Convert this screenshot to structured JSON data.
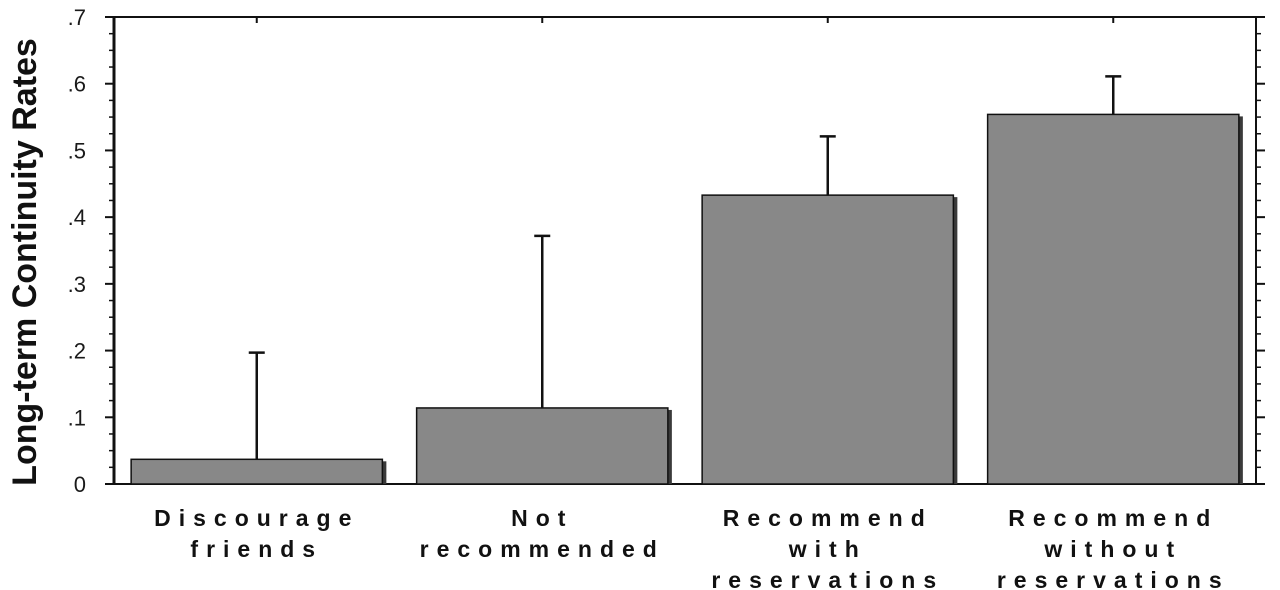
{
  "chart_data": {
    "type": "bar",
    "title": "",
    "xlabel": "",
    "ylabel": "Long-term Continuity Rates",
    "categories": [
      [
        "Discourage",
        "friends"
      ],
      [
        "Not",
        "recommended"
      ],
      [
        "Recommend",
        "with",
        "reservations"
      ],
      [
        "Recommend",
        "without",
        "reservations"
      ]
    ],
    "values": [
      0.037,
      0.114,
      0.433,
      0.554
    ],
    "error_upper": [
      0.197,
      0.372,
      0.521,
      0.611
    ],
    "ylim": [
      0,
      0.7
    ],
    "yticks": [
      0,
      0.1,
      0.2,
      0.3,
      0.4,
      0.5,
      0.6,
      0.7
    ],
    "ytick_labels": [
      "0",
      ".1",
      ".2",
      ".3",
      ".4",
      ".5",
      ".6",
      ".7"
    ],
    "grid": false,
    "legend": "none",
    "colors": {
      "bar": "#888888",
      "bar_shadow": "#3a3a3a",
      "axis": "#111111"
    }
  }
}
